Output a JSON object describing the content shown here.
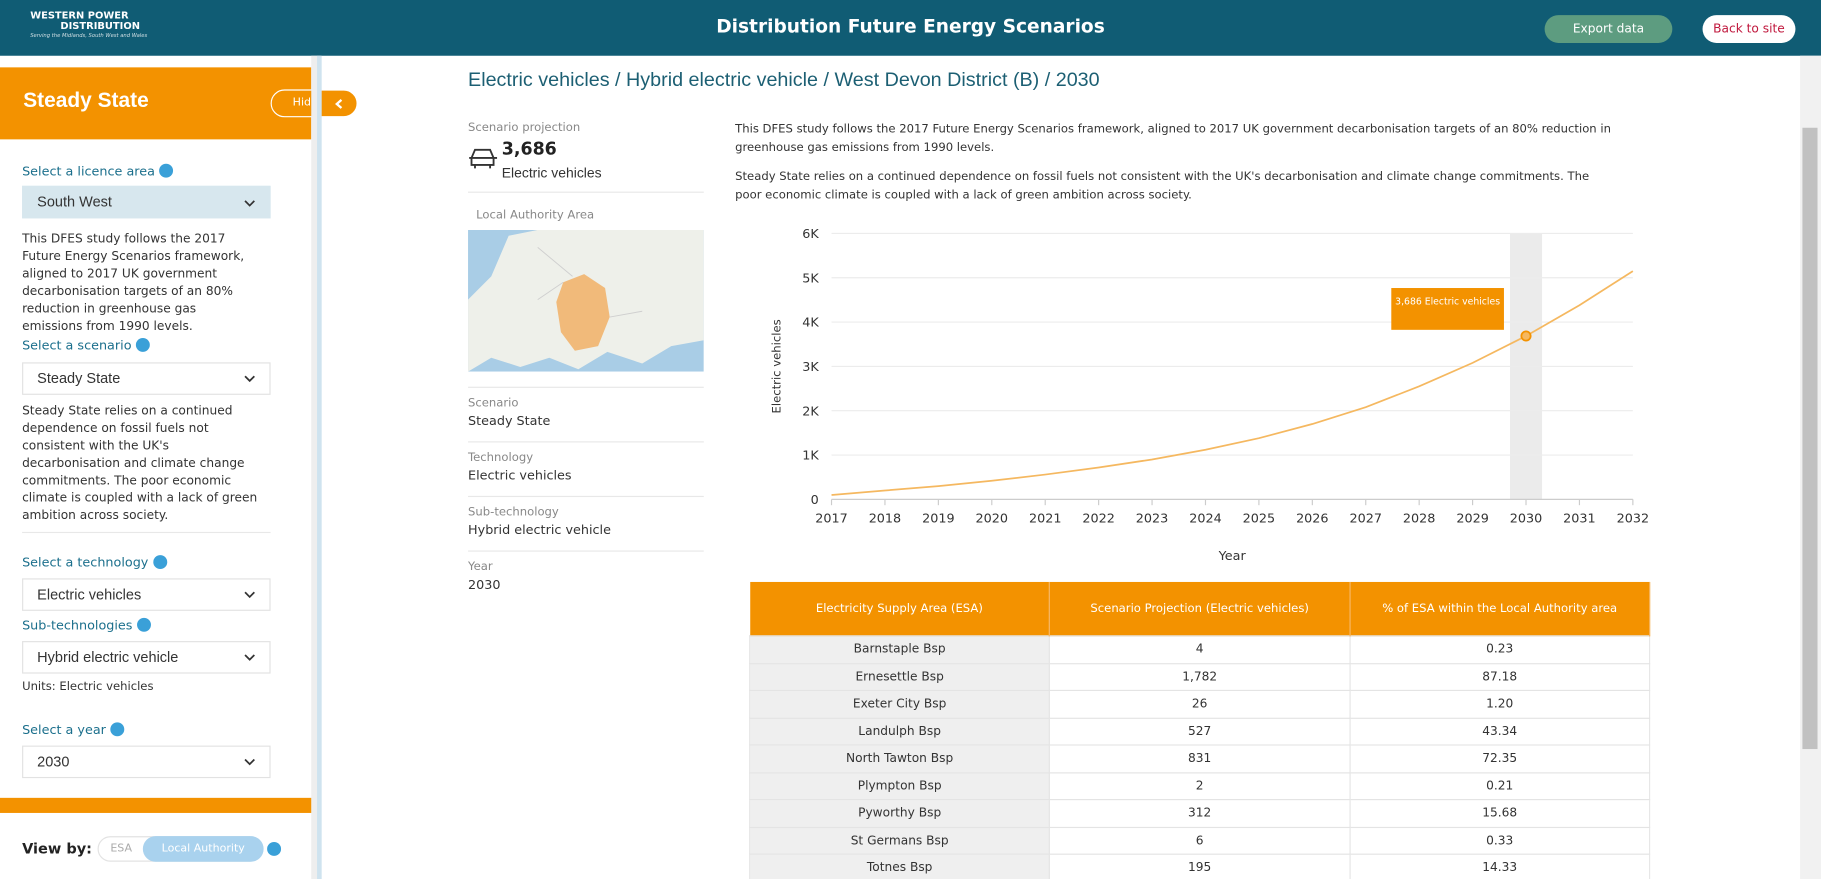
{
  "header": {
    "logo_line1": "WESTERN POWER",
    "logo_line2": "DISTRIBUTION",
    "tagline": "Serving the Midlands, South West and Wales",
    "title": "Distribution Future Energy Scenarios",
    "export": "Export data",
    "back": "Back to site"
  },
  "sidebar": {
    "title": "Steady State",
    "hide": "Hide",
    "licence_label": "Select a licence area",
    "licence": "South West",
    "licence_text": "This DFES study follows the 2017 Future Energy Scenarios framework, aligned to 2017 UK government decarbonisation targets of an 80% reduction in greenhouse gas emissions from 1990 levels.",
    "scenario_label": "Select a scenario",
    "scenario": "Steady State",
    "scenario_text": "Steady State relies on a continued dependence on fossil fuels not consistent with the UK's decarbonisation and climate change commitments. The poor economic climate is coupled with a lack of green ambition across society.",
    "technology_label": "Select a technology",
    "technology": "Electric vehicles",
    "subtech_label": "Sub-technologies",
    "subtech": "Hybrid electric vehicle",
    "units": "Units: Electric vehicles",
    "year_label": "Select a year",
    "year": "2030",
    "view_by": "View by:",
    "view_options": [
      "ESA",
      "Local Authority"
    ]
  },
  "main": {
    "title": "Electric vehicles / Hybrid electric vehicle / West Devon District (B) / 2030",
    "projection_label": "Scenario projection",
    "projection_value": "3,686",
    "projection_unit": "Electric vehicles",
    "area_label": "Local Authority Area",
    "details": [
      {
        "label": "Scenario",
        "value": "Steady State"
      },
      {
        "label": "Technology",
        "value": "Electric vehicles"
      },
      {
        "label": "Sub-technology",
        "value": "Hybrid electric vehicle"
      },
      {
        "label": "Year",
        "value": "2030"
      }
    ],
    "paragraphs": [
      "This DFES study follows the 2017 Future Energy Scenarios framework, aligned to 2017 UK government decarbonisation targets of an 80% reduction in greenhouse gas emissions from 1990 levels.",
      "Steady State relies on a continued dependence on fossil fuels not consistent with the UK's decarbonisation and climate change commitments. The poor economic climate is coupled with a lack of green ambition across society."
    ]
  },
  "chart_data": {
    "type": "line",
    "x_label": "Year",
    "y_label": "Electric vehicles",
    "color": "#f5b860",
    "x": [
      2017,
      2018,
      2019,
      2020,
      2021,
      2022,
      2023,
      2024,
      2025,
      2026,
      2027,
      2028,
      2029,
      2030,
      2031,
      2032
    ],
    "values": [
      100,
      200,
      300,
      420,
      560,
      720,
      900,
      1120,
      1380,
      1700,
      2080,
      2550,
      3080,
      3686,
      4380,
      5150
    ],
    "xlim": [
      2017,
      2032
    ],
    "xticks": [
      2017,
      2018,
      2019,
      2020,
      2021,
      2022,
      2023,
      2024,
      2025,
      2026,
      2027,
      2028,
      2029,
      2030,
      2031,
      2032
    ],
    "ylim": [
      0,
      6000
    ],
    "yticks": [
      0,
      {
        "value": 1000,
        "label": "1K"
      },
      {
        "value": 2000,
        "label": "2K"
      },
      {
        "value": 3000,
        "label": "3K"
      },
      {
        "value": 4000,
        "label": "4K"
      },
      {
        "value": 5000,
        "label": "5K"
      },
      {
        "value": 6000,
        "label": "6K"
      }
    ],
    "grid": true,
    "highlight_x": 2030,
    "annotation": "3,686 Electric vehicles"
  },
  "table": {
    "header": [
      "Electricity Supply Area (ESA)",
      "Scenario Projection (Electric vehicles)",
      "% of ESA within the Local Authority area"
    ],
    "rows": [
      [
        "Barnstaple Bsp",
        "4",
        "0.23"
      ],
      [
        "Ernesettle Bsp",
        "1,782",
        "87.18"
      ],
      [
        "Exeter City Bsp",
        "26",
        "1.20"
      ],
      [
        "Landulph Bsp",
        "527",
        "43.34"
      ],
      [
        "North Tawton Bsp",
        "831",
        "72.35"
      ],
      [
        "Plympton Bsp",
        "2",
        "0.21"
      ],
      [
        "Pyworthy Bsp",
        "312",
        "15.68"
      ],
      [
        "St Germans Bsp",
        "6",
        "0.33"
      ],
      [
        "Totnes Bsp",
        "195",
        "14.33"
      ]
    ]
  }
}
